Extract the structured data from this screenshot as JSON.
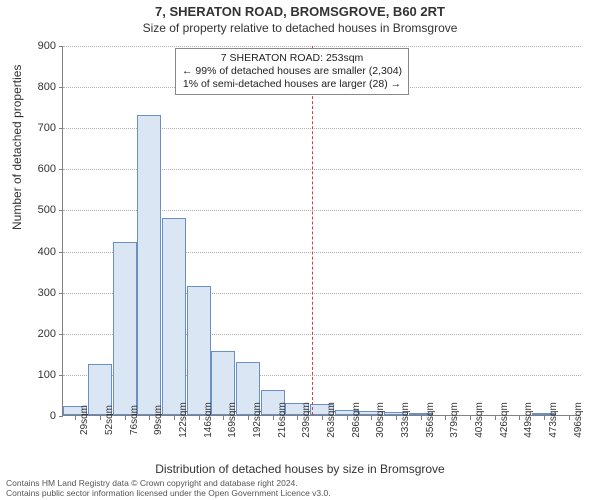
{
  "title": "7, SHERATON ROAD, BROMSGROVE, B60 2RT",
  "subtitle": "Size of property relative to detached houses in Bromsgrove",
  "ylabel": "Number of detached properties",
  "xlabel": "Distribution of detached houses by size in Bromsgrove",
  "footer_line1": "Contains HM Land Registry data © Crown copyright and database right 2024.",
  "footer_line2": "Contains public sector information licensed under the Open Government Licence v3.0.",
  "chart": {
    "type": "histogram",
    "ylim": [
      0,
      900
    ],
    "ytick_step": 100,
    "x_categories": [
      "29sqm",
      "52sqm",
      "76sqm",
      "99sqm",
      "122sqm",
      "146sqm",
      "169sqm",
      "192sqm",
      "216sqm",
      "239sqm",
      "263sqm",
      "286sqm",
      "309sqm",
      "333sqm",
      "356sqm",
      "379sqm",
      "403sqm",
      "426sqm",
      "449sqm",
      "473sqm",
      "496sqm"
    ],
    "values": [
      22,
      125,
      420,
      730,
      480,
      315,
      155,
      130,
      60,
      30,
      28,
      12,
      10,
      8,
      6,
      0,
      0,
      0,
      0,
      6,
      0
    ],
    "bar_fill": "#dbe6f4",
    "bar_stroke": "#6a8fc5",
    "grid_color": "#b0b0b0",
    "axis_color": "#808080",
    "background_color": "#ffffff",
    "highlight_x": "263sqm",
    "highlight_color": "#d04040",
    "annotation": {
      "line1": "7 SHERATON ROAD: 253sqm",
      "line2": "← 99% of detached houses are smaller (2,304)",
      "line3": "1% of semi-detached houses are larger (28) →"
    },
    "label_fontsize": 12,
    "tick_fontsize": 10,
    "title_fontsize": 13
  }
}
